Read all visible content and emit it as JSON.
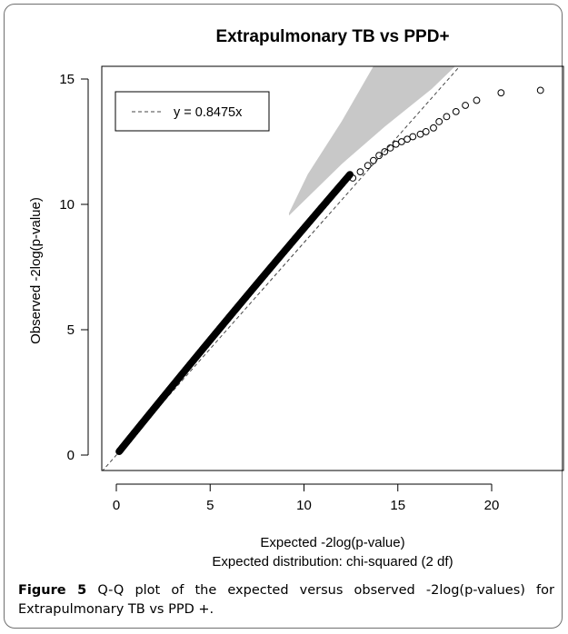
{
  "chart_data": {
    "type": "scatter",
    "title": "Extrapulmonary TB vs PPD+",
    "xlabel": "Expected -2log(p-value)",
    "xlabel2": "Expected distribution: chi-squared (2 df)",
    "ylabel": "Observed -2log(p-value)",
    "xlim": [
      0,
      23
    ],
    "ylim": [
      0,
      15
    ],
    "xticks": [
      "0",
      "5",
      "10",
      "15",
      "20"
    ],
    "yticks": [
      "0",
      "5",
      "10",
      "15"
    ],
    "legend": {
      "position": "top-left",
      "entries": [
        {
          "label": "y = 0.8475x",
          "style": "dashed"
        }
      ]
    },
    "reference_line": {
      "slope": 0.8475,
      "style": "dashed",
      "color": "#444444"
    },
    "confidence_band_color": "#c8c8c8",
    "tail_points": [
      [
        12.6,
        11.05
      ],
      [
        13.0,
        11.3
      ],
      [
        13.4,
        11.55
      ],
      [
        13.7,
        11.75
      ],
      [
        14.0,
        11.95
      ],
      [
        14.3,
        12.1
      ],
      [
        14.6,
        12.25
      ],
      [
        14.9,
        12.4
      ],
      [
        15.2,
        12.5
      ],
      [
        15.5,
        12.6
      ],
      [
        15.8,
        12.7
      ],
      [
        16.2,
        12.8
      ],
      [
        16.5,
        12.9
      ],
      [
        16.9,
        13.05
      ],
      [
        17.2,
        13.3
      ],
      [
        17.6,
        13.5
      ],
      [
        18.1,
        13.7
      ],
      [
        18.6,
        13.95
      ],
      [
        19.2,
        14.15
      ],
      [
        20.5,
        14.45
      ],
      [
        22.6,
        14.55
      ]
    ]
  },
  "caption": {
    "label": "Figure 5",
    "text": " Q-Q plot of the expected versus observed -2log(p-values) for Extrapulmonary TB vs PPD +."
  }
}
